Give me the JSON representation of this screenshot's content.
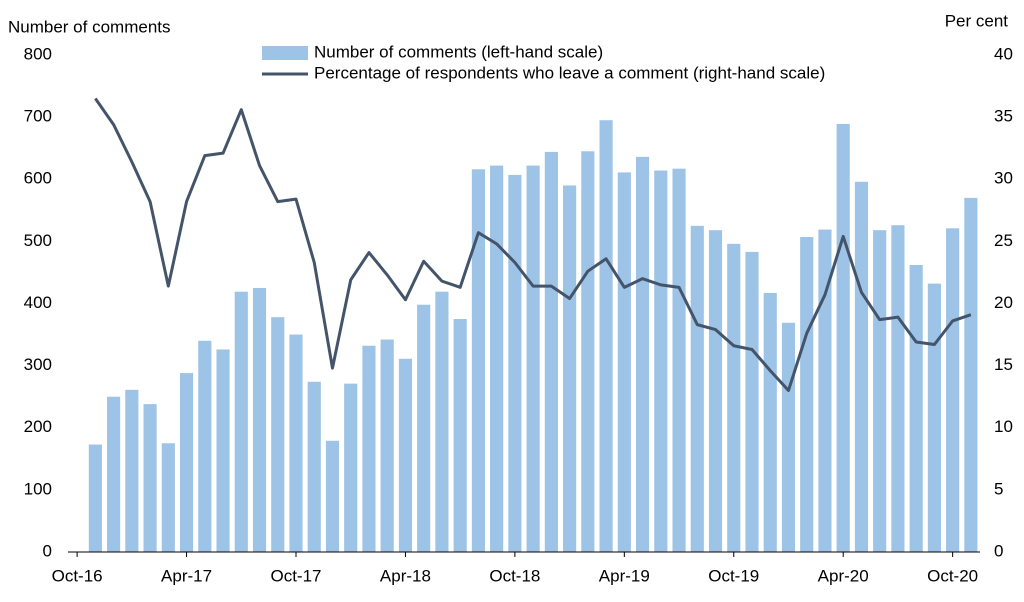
{
  "chart_data": {
    "type": "bar-line",
    "y_label": "Number of comments",
    "y2_label": "Per cent",
    "categories": [
      "Oct-16",
      null,
      null,
      null,
      null,
      null,
      "Apr-17",
      null,
      null,
      null,
      null,
      null,
      "Oct-17",
      null,
      null,
      null,
      null,
      null,
      "Apr-18",
      null,
      null,
      null,
      null,
      null,
      "Oct-18",
      null,
      null,
      null,
      null,
      null,
      "Apr-19",
      null,
      null,
      null,
      null,
      null,
      "Oct-19",
      null,
      null,
      null,
      null,
      null,
      "Apr-20",
      null,
      null,
      null,
      null,
      null,
      "Oct-20",
      null
    ],
    "series": [
      {
        "name": "Number of comments (left-hand scale)",
        "type": "bar",
        "color": "#9dc3e6",
        "values": [
          null,
          173,
          250,
          261,
          238,
          175,
          288,
          340,
          326,
          419,
          425,
          378,
          350,
          274,
          179,
          271,
          332,
          342,
          311,
          398,
          419,
          375,
          616,
          622,
          607,
          622,
          644,
          590,
          645,
          695,
          611,
          636,
          614,
          617,
          525,
          518,
          496,
          483,
          417,
          369,
          507,
          519,
          689,
          596,
          518,
          526,
          462,
          432,
          521,
          570
        ]
      },
      {
        "name": "Percentage of respondents who leave a comment (right-hand scale)",
        "type": "line",
        "axis": "y2",
        "color": "#44546a",
        "values": [
          null,
          36.5,
          34.4,
          31.4,
          28.2,
          21.4,
          28.2,
          31.9,
          32.1,
          35.6,
          31.1,
          28.2,
          28.4,
          23.3,
          14.8,
          21.9,
          24.1,
          22.3,
          20.3,
          23.4,
          21.8,
          21.3,
          25.7,
          24.8,
          23.3,
          21.4,
          21.4,
          20.4,
          22.6,
          23.6,
          21.3,
          22.0,
          21.5,
          21.3,
          18.3,
          17.9,
          16.6,
          16.3,
          14.6,
          13.0,
          17.6,
          20.7,
          25.4,
          20.9,
          18.7,
          18.9,
          16.9,
          16.7,
          18.6,
          19.1
        ]
      }
    ],
    "ylim": [
      0,
      800
    ],
    "yticks": [
      0,
      100,
      200,
      300,
      400,
      500,
      600,
      700,
      800
    ],
    "y2lim": [
      0,
      40
    ],
    "y2ticks": [
      0,
      5,
      10,
      15,
      20,
      25,
      30,
      35,
      40
    ],
    "grid": false
  }
}
